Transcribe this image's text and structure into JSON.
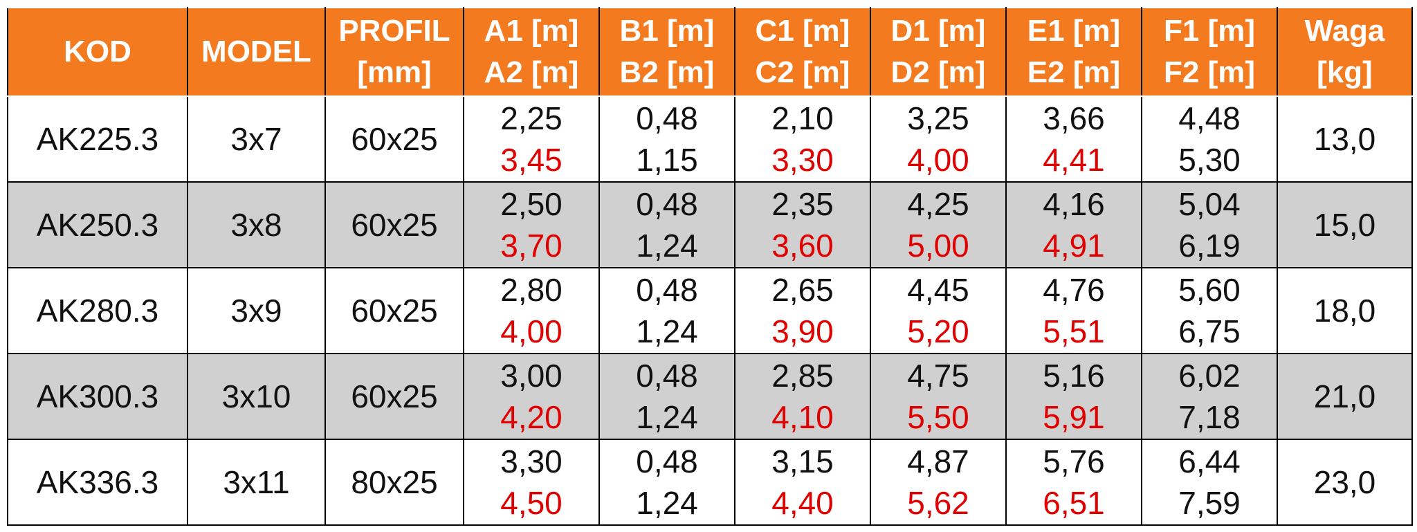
{
  "table": {
    "header": [
      "KOD",
      "MODEL",
      "PROFIL\n[mm]",
      "A1 [m]\nA2 [m]",
      "B1 [m]\nB2 [m]",
      "C1 [m]\nC2 [m]",
      "D1 [m]\nD2 [m]",
      "E1 [m]\nE2 [m]",
      "F1 [m]\nF2 [m]",
      "Waga\n[kg]"
    ],
    "rows": [
      [
        "AK225.3",
        "3x7",
        "60x25",
        [
          "2,25",
          "3,45"
        ],
        [
          "0,48",
          "1,15"
        ],
        [
          "2,10",
          "3,30"
        ],
        [
          "3,25",
          "4,00"
        ],
        [
          "3,66",
          "4,41"
        ],
        [
          "4,48",
          "5,30"
        ],
        "13,0"
      ],
      [
        "AK250.3",
        "3x8",
        "60x25",
        [
          "2,50",
          "3,70"
        ],
        [
          "0,48",
          "1,24"
        ],
        [
          "2,35",
          "3,60"
        ],
        [
          "4,25",
          "5,00"
        ],
        [
          "4,16",
          "4,91"
        ],
        [
          "5,04",
          "6,19"
        ],
        "15,0"
      ],
      [
        "AK280.3",
        "3x9",
        "60x25",
        [
          "2,80",
          "4,00"
        ],
        [
          "0,48",
          "1,24"
        ],
        [
          "2,65",
          "3,90"
        ],
        [
          "4,45",
          "5,20"
        ],
        [
          "4,76",
          "5,51"
        ],
        [
          "5,60",
          "6,75"
        ],
        "18,0"
      ],
      [
        "AK300.3",
        "3x10",
        "60x25",
        [
          "3,00",
          "4,20"
        ],
        [
          "0,48",
          "1,24"
        ],
        [
          "2,85",
          "4,10"
        ],
        [
          "4,75",
          "5,50"
        ],
        [
          "5,16",
          "5,91"
        ],
        [
          "6,02",
          "7,18"
        ],
        "21,0"
      ],
      [
        "AK336.3",
        "3x11",
        "80x25",
        [
          "3,30",
          "4,50"
        ],
        [
          "0,48",
          "1,24"
        ],
        [
          "3,15",
          "4,40"
        ],
        [
          "4,87",
          "5,62"
        ],
        [
          "5,76",
          "6,51"
        ],
        [
          "6,44",
          "7,59"
        ],
        "23,0"
      ]
    ]
  }
}
